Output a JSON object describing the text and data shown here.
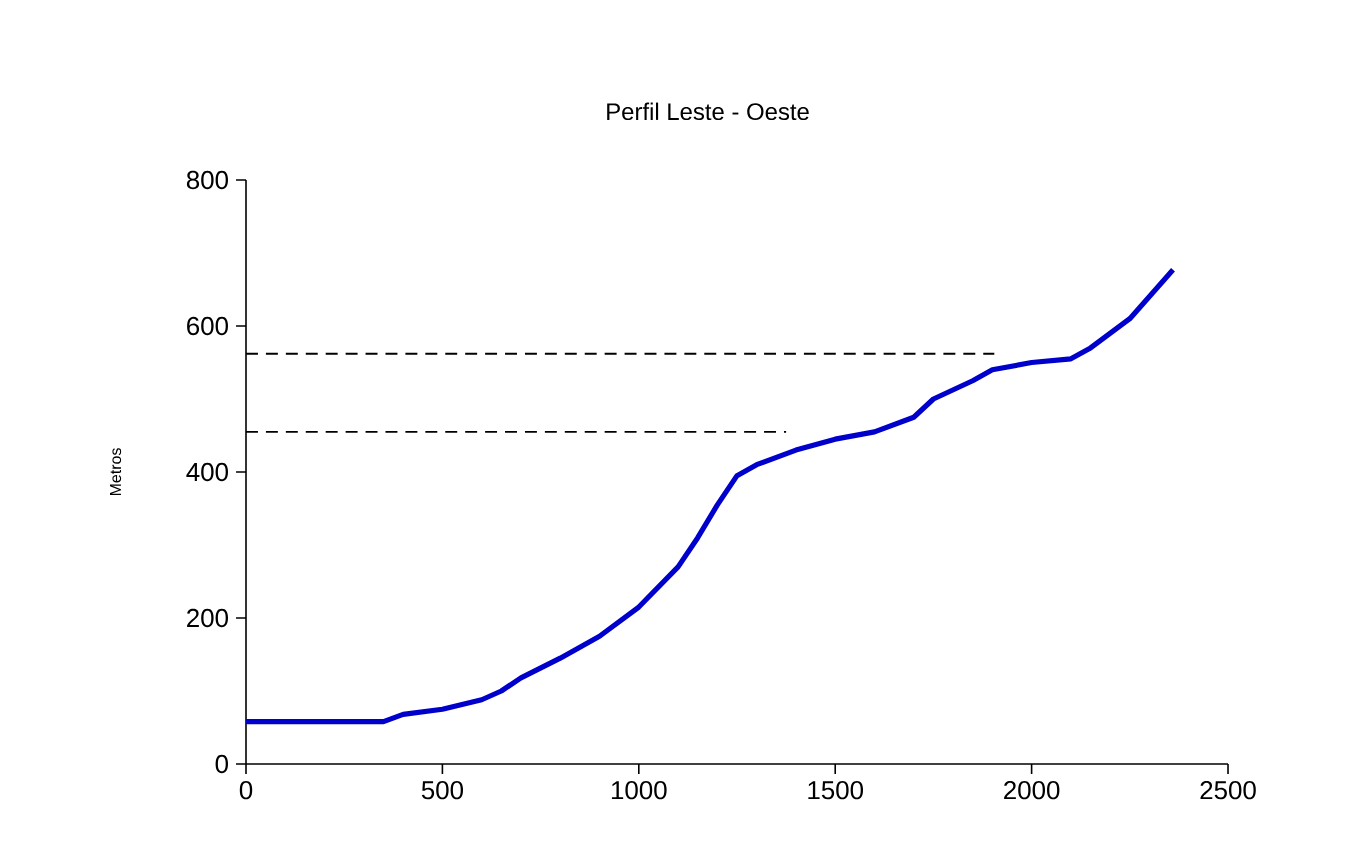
{
  "chart_data": {
    "type": "line",
    "title": "Perfil Leste - Oeste",
    "ylabel": "Metros",
    "xlim": [
      0,
      2500
    ],
    "ylim": [
      0,
      800
    ],
    "xticks": [
      0,
      500,
      1000,
      1500,
      2000,
      2500
    ],
    "yticks": [
      0,
      200,
      400,
      600,
      800
    ],
    "grid": false,
    "marker": "none",
    "series": [
      {
        "color": "#0000cc",
        "line_style": "solid",
        "x": [
          0,
          350,
          400,
          500,
          600,
          650,
          700,
          800,
          900,
          1000,
          1100,
          1150,
          1200,
          1250,
          1300,
          1400,
          1500,
          1600,
          1700,
          1750,
          1850,
          1900,
          2000,
          2100,
          2150,
          2250,
          2360
        ],
        "values": [
          58,
          58,
          68,
          75,
          88,
          100,
          118,
          145,
          175,
          215,
          270,
          310,
          355,
          395,
          410,
          430,
          445,
          455,
          475,
          500,
          525,
          540,
          550,
          555,
          570,
          610,
          677
        ]
      },
      {
        "color": "#000000",
        "line_style": "dashed",
        "x": [
          0,
          1905
        ],
        "values": [
          562,
          562
        ]
      },
      {
        "color": "#000000",
        "line_style": "dashed",
        "x": [
          0,
          1375
        ],
        "values": [
          455,
          455
        ]
      }
    ]
  }
}
